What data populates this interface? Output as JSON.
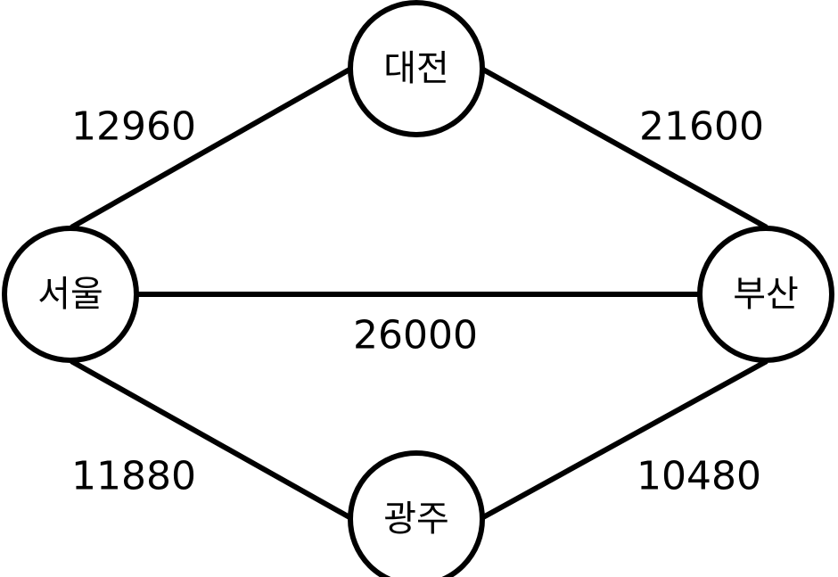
{
  "nodes": {
    "seoul": {
      "label": "서울"
    },
    "daejeon": {
      "label": "대전"
    },
    "busan": {
      "label": "부산"
    },
    "gwangju": {
      "label": "광주"
    }
  },
  "edges": {
    "seoul_daejeon": {
      "weight": "12960"
    },
    "daejeon_busan": {
      "weight": "21600"
    },
    "seoul_busan": {
      "weight": "26000"
    },
    "seoul_gwangju": {
      "weight": "11880"
    },
    "gwangju_busan": {
      "weight": "10480"
    }
  },
  "colors": {
    "stroke": "#000000",
    "background": "#ffffff"
  }
}
